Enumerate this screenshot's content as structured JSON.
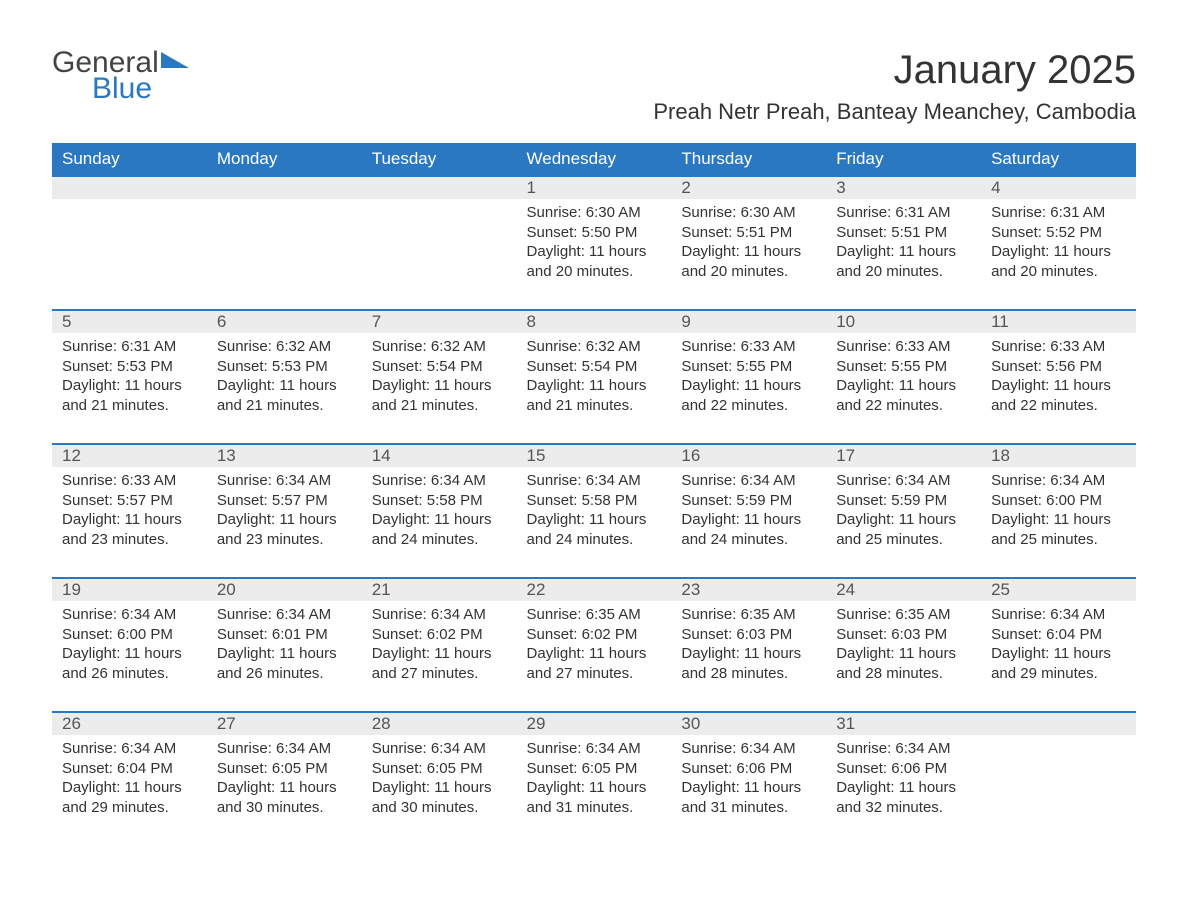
{
  "logo": {
    "general": "General",
    "blue": "Blue"
  },
  "title": "January 2025",
  "location": "Preah Netr Preah, Banteay Meanchey, Cambodia",
  "colors": {
    "header_bg": "#2b78c2",
    "header_text": "#ffffff",
    "daynum_bg": "#ececec",
    "daynum_text": "#555555",
    "body_text": "#333333",
    "week_border": "#2b78c2"
  },
  "weekdays": [
    "Sunday",
    "Monday",
    "Tuesday",
    "Wednesday",
    "Thursday",
    "Friday",
    "Saturday"
  ],
  "weeks": [
    [
      null,
      null,
      null,
      {
        "n": "1",
        "sunrise": "Sunrise: 6:30 AM",
        "sunset": "Sunset: 5:50 PM",
        "d1": "Daylight: 11 hours",
        "d2": "and 20 minutes."
      },
      {
        "n": "2",
        "sunrise": "Sunrise: 6:30 AM",
        "sunset": "Sunset: 5:51 PM",
        "d1": "Daylight: 11 hours",
        "d2": "and 20 minutes."
      },
      {
        "n": "3",
        "sunrise": "Sunrise: 6:31 AM",
        "sunset": "Sunset: 5:51 PM",
        "d1": "Daylight: 11 hours",
        "d2": "and 20 minutes."
      },
      {
        "n": "4",
        "sunrise": "Sunrise: 6:31 AM",
        "sunset": "Sunset: 5:52 PM",
        "d1": "Daylight: 11 hours",
        "d2": "and 20 minutes."
      }
    ],
    [
      {
        "n": "5",
        "sunrise": "Sunrise: 6:31 AM",
        "sunset": "Sunset: 5:53 PM",
        "d1": "Daylight: 11 hours",
        "d2": "and 21 minutes."
      },
      {
        "n": "6",
        "sunrise": "Sunrise: 6:32 AM",
        "sunset": "Sunset: 5:53 PM",
        "d1": "Daylight: 11 hours",
        "d2": "and 21 minutes."
      },
      {
        "n": "7",
        "sunrise": "Sunrise: 6:32 AM",
        "sunset": "Sunset: 5:54 PM",
        "d1": "Daylight: 11 hours",
        "d2": "and 21 minutes."
      },
      {
        "n": "8",
        "sunrise": "Sunrise: 6:32 AM",
        "sunset": "Sunset: 5:54 PM",
        "d1": "Daylight: 11 hours",
        "d2": "and 21 minutes."
      },
      {
        "n": "9",
        "sunrise": "Sunrise: 6:33 AM",
        "sunset": "Sunset: 5:55 PM",
        "d1": "Daylight: 11 hours",
        "d2": "and 22 minutes."
      },
      {
        "n": "10",
        "sunrise": "Sunrise: 6:33 AM",
        "sunset": "Sunset: 5:55 PM",
        "d1": "Daylight: 11 hours",
        "d2": "and 22 minutes."
      },
      {
        "n": "11",
        "sunrise": "Sunrise: 6:33 AM",
        "sunset": "Sunset: 5:56 PM",
        "d1": "Daylight: 11 hours",
        "d2": "and 22 minutes."
      }
    ],
    [
      {
        "n": "12",
        "sunrise": "Sunrise: 6:33 AM",
        "sunset": "Sunset: 5:57 PM",
        "d1": "Daylight: 11 hours",
        "d2": "and 23 minutes."
      },
      {
        "n": "13",
        "sunrise": "Sunrise: 6:34 AM",
        "sunset": "Sunset: 5:57 PM",
        "d1": "Daylight: 11 hours",
        "d2": "and 23 minutes."
      },
      {
        "n": "14",
        "sunrise": "Sunrise: 6:34 AM",
        "sunset": "Sunset: 5:58 PM",
        "d1": "Daylight: 11 hours",
        "d2": "and 24 minutes."
      },
      {
        "n": "15",
        "sunrise": "Sunrise: 6:34 AM",
        "sunset": "Sunset: 5:58 PM",
        "d1": "Daylight: 11 hours",
        "d2": "and 24 minutes."
      },
      {
        "n": "16",
        "sunrise": "Sunrise: 6:34 AM",
        "sunset": "Sunset: 5:59 PM",
        "d1": "Daylight: 11 hours",
        "d2": "and 24 minutes."
      },
      {
        "n": "17",
        "sunrise": "Sunrise: 6:34 AM",
        "sunset": "Sunset: 5:59 PM",
        "d1": "Daylight: 11 hours",
        "d2": "and 25 minutes."
      },
      {
        "n": "18",
        "sunrise": "Sunrise: 6:34 AM",
        "sunset": "Sunset: 6:00 PM",
        "d1": "Daylight: 11 hours",
        "d2": "and 25 minutes."
      }
    ],
    [
      {
        "n": "19",
        "sunrise": "Sunrise: 6:34 AM",
        "sunset": "Sunset: 6:00 PM",
        "d1": "Daylight: 11 hours",
        "d2": "and 26 minutes."
      },
      {
        "n": "20",
        "sunrise": "Sunrise: 6:34 AM",
        "sunset": "Sunset: 6:01 PM",
        "d1": "Daylight: 11 hours",
        "d2": "and 26 minutes."
      },
      {
        "n": "21",
        "sunrise": "Sunrise: 6:34 AM",
        "sunset": "Sunset: 6:02 PM",
        "d1": "Daylight: 11 hours",
        "d2": "and 27 minutes."
      },
      {
        "n": "22",
        "sunrise": "Sunrise: 6:35 AM",
        "sunset": "Sunset: 6:02 PM",
        "d1": "Daylight: 11 hours",
        "d2": "and 27 minutes."
      },
      {
        "n": "23",
        "sunrise": "Sunrise: 6:35 AM",
        "sunset": "Sunset: 6:03 PM",
        "d1": "Daylight: 11 hours",
        "d2": "and 28 minutes."
      },
      {
        "n": "24",
        "sunrise": "Sunrise: 6:35 AM",
        "sunset": "Sunset: 6:03 PM",
        "d1": "Daylight: 11 hours",
        "d2": "and 28 minutes."
      },
      {
        "n": "25",
        "sunrise": "Sunrise: 6:34 AM",
        "sunset": "Sunset: 6:04 PM",
        "d1": "Daylight: 11 hours",
        "d2": "and 29 minutes."
      }
    ],
    [
      {
        "n": "26",
        "sunrise": "Sunrise: 6:34 AM",
        "sunset": "Sunset: 6:04 PM",
        "d1": "Daylight: 11 hours",
        "d2": "and 29 minutes."
      },
      {
        "n": "27",
        "sunrise": "Sunrise: 6:34 AM",
        "sunset": "Sunset: 6:05 PM",
        "d1": "Daylight: 11 hours",
        "d2": "and 30 minutes."
      },
      {
        "n": "28",
        "sunrise": "Sunrise: 6:34 AM",
        "sunset": "Sunset: 6:05 PM",
        "d1": "Daylight: 11 hours",
        "d2": "and 30 minutes."
      },
      {
        "n": "29",
        "sunrise": "Sunrise: 6:34 AM",
        "sunset": "Sunset: 6:05 PM",
        "d1": "Daylight: 11 hours",
        "d2": "and 31 minutes."
      },
      {
        "n": "30",
        "sunrise": "Sunrise: 6:34 AM",
        "sunset": "Sunset: 6:06 PM",
        "d1": "Daylight: 11 hours",
        "d2": "and 31 minutes."
      },
      {
        "n": "31",
        "sunrise": "Sunrise: 6:34 AM",
        "sunset": "Sunset: 6:06 PM",
        "d1": "Daylight: 11 hours",
        "d2": "and 32 minutes."
      },
      null
    ]
  ]
}
